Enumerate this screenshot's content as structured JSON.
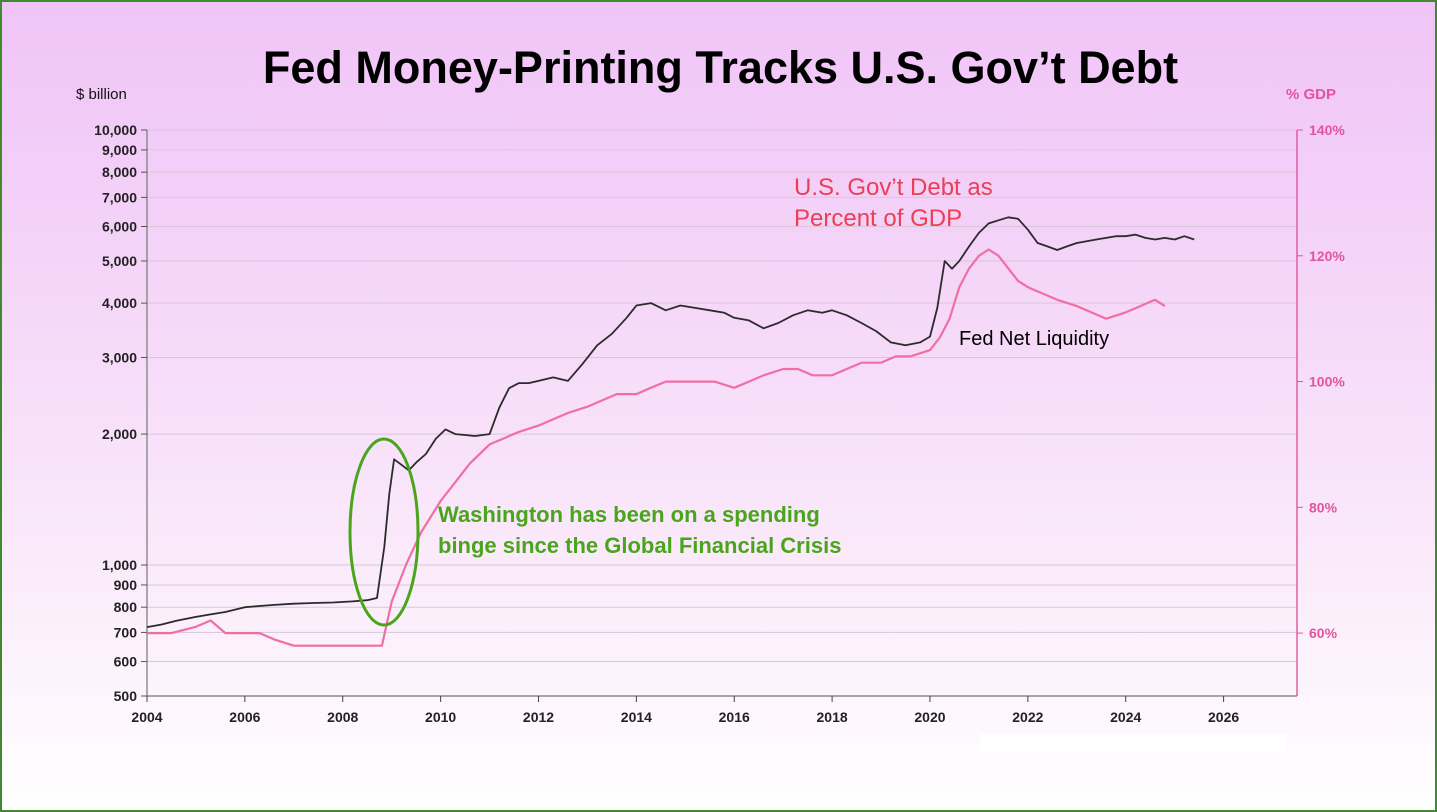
{
  "title": "Fed Money-Printing Tracks U.S. Gov’t Debt",
  "left_axis_unit": "$ billion",
  "right_axis_unit": "% GDP",
  "annotations": {
    "debt_line_1": "U.S. Gov’t Debt as",
    "debt_line_2": "Percent of GDP",
    "liquidity": "Fed Net Liquidity",
    "washington_line_1": "Washington has been on a spending",
    "washington_line_2": "binge since the Global Financial Crisis"
  },
  "colors": {
    "liquidity_line": "#2b2b2b",
    "debt_line": "#ef6fa3",
    "right_axis": "#e2559d",
    "annotation_debt": "#ea3f55",
    "annotation_wash": "#4aa51c",
    "ellipse": "#4aa51c",
    "border": "#3f8a2e"
  },
  "chart_data": {
    "type": "line",
    "title": "Fed Money-Printing Tracks U.S. Gov’t Debt",
    "xlabel": "",
    "ylabel": "$ billion",
    "y2label": "% GDP",
    "x_range": [
      2004,
      2027.5
    ],
    "x_ticks": [
      "2004",
      "2006",
      "2008",
      "2010",
      "2012",
      "2014",
      "2016",
      "2018",
      "2020",
      "2022",
      "2024",
      "2026"
    ],
    "y_scale": "log",
    "y_range": [
      500,
      10000
    ],
    "y_ticks": [
      "500",
      "600",
      "700",
      "800",
      "900",
      "1,000",
      "2,000",
      "3,000",
      "4,000",
      "5,000",
      "6,000",
      "7,000",
      "8,000",
      "9,000",
      "10,000"
    ],
    "y2_range": [
      50,
      140
    ],
    "y2_ticks": [
      "60%",
      "80%",
      "100%",
      "120%",
      "140%"
    ],
    "grid": true,
    "series": [
      {
        "name": "Fed Net Liquidity",
        "axis": "left",
        "x": [
          2004.0,
          2004.3,
          2004.6,
          2005.0,
          2005.3,
          2005.6,
          2006.0,
          2006.3,
          2006.6,
          2007.0,
          2007.4,
          2007.8,
          2008.2,
          2008.5,
          2008.7,
          2008.85,
          2008.95,
          2009.05,
          2009.2,
          2009.35,
          2009.5,
          2009.7,
          2009.9,
          2010.1,
          2010.3,
          2010.5,
          2010.7,
          2011.0,
          2011.2,
          2011.4,
          2011.6,
          2011.8,
          2012.0,
          2012.3,
          2012.6,
          2012.9,
          2013.2,
          2013.5,
          2013.8,
          2014.0,
          2014.3,
          2014.6,
          2014.9,
          2015.2,
          2015.5,
          2015.8,
          2016.0,
          2016.3,
          2016.6,
          2016.9,
          2017.2,
          2017.5,
          2017.8,
          2018.0,
          2018.3,
          2018.6,
          2018.9,
          2019.2,
          2019.5,
          2019.8,
          2020.0,
          2020.15,
          2020.3,
          2020.45,
          2020.6,
          2020.8,
          2021.0,
          2021.2,
          2021.4,
          2021.6,
          2021.8,
          2022.0,
          2022.2,
          2022.4,
          2022.6,
          2022.8,
          2023.0,
          2023.2,
          2023.4,
          2023.6,
          2023.8,
          2024.0,
          2024.2,
          2024.4,
          2024.6,
          2024.8,
          2025.0,
          2025.2,
          2025.4
        ],
        "values": [
          720,
          730,
          745,
          760,
          770,
          780,
          800,
          805,
          810,
          815,
          818,
          820,
          825,
          830,
          840,
          1100,
          1450,
          1750,
          1700,
          1650,
          1720,
          1800,
          1950,
          2050,
          2000,
          1990,
          1980,
          2000,
          2300,
          2550,
          2620,
          2620,
          2650,
          2700,
          2650,
          2900,
          3200,
          3400,
          3700,
          3950,
          4000,
          3850,
          3950,
          3900,
          3850,
          3800,
          3700,
          3650,
          3500,
          3600,
          3750,
          3850,
          3800,
          3850,
          3750,
          3600,
          3450,
          3250,
          3200,
          3250,
          3350,
          3900,
          5000,
          4800,
          5000,
          5400,
          5800,
          6100,
          6200,
          6300,
          6250,
          5900,
          5500,
          5400,
          5300,
          5400,
          5500,
          5550,
          5600,
          5650,
          5700,
          5700,
          5750,
          5650,
          5600,
          5650,
          5600,
          5700,
          5600
        ]
      },
      {
        "name": "U.S. Gov’t Debt as Percent of GDP",
        "axis": "right",
        "x": [
          2004.0,
          2004.5,
          2005.0,
          2005.3,
          2005.6,
          2006.0,
          2006.3,
          2006.6,
          2007.0,
          2007.3,
          2007.6,
          2008.0,
          2008.3,
          2008.6,
          2008.8,
          2009.0,
          2009.3,
          2009.6,
          2010.0,
          2010.3,
          2010.6,
          2011.0,
          2011.3,
          2011.6,
          2012.0,
          2012.3,
          2012.6,
          2013.0,
          2013.3,
          2013.6,
          2014.0,
          2014.3,
          2014.6,
          2015.0,
          2015.3,
          2015.6,
          2016.0,
          2016.3,
          2016.6,
          2017.0,
          2017.3,
          2017.6,
          2018.0,
          2018.3,
          2018.6,
          2019.0,
          2019.3,
          2019.6,
          2020.0,
          2020.2,
          2020.4,
          2020.6,
          2020.8,
          2021.0,
          2021.2,
          2021.4,
          2021.6,
          2021.8,
          2022.0,
          2022.3,
          2022.6,
          2023.0,
          2023.3,
          2023.6,
          2024.0,
          2024.3,
          2024.6,
          2024.8
        ],
        "values": [
          60,
          60,
          61,
          62,
          60,
          60,
          60,
          59,
          58,
          58,
          58,
          58,
          58,
          58,
          58,
          65,
          71,
          76,
          81,
          84,
          87,
          90,
          91,
          92,
          93,
          94,
          95,
          96,
          97,
          98,
          98,
          99,
          100,
          100,
          100,
          100,
          99,
          100,
          101,
          102,
          102,
          101,
          101,
          102,
          103,
          103,
          104,
          104,
          105,
          107,
          110,
          115,
          118,
          120,
          121,
          120,
          118,
          116,
          115,
          114,
          113,
          112,
          111,
          110,
          111,
          112,
          113,
          112
        ]
      }
    ]
  }
}
